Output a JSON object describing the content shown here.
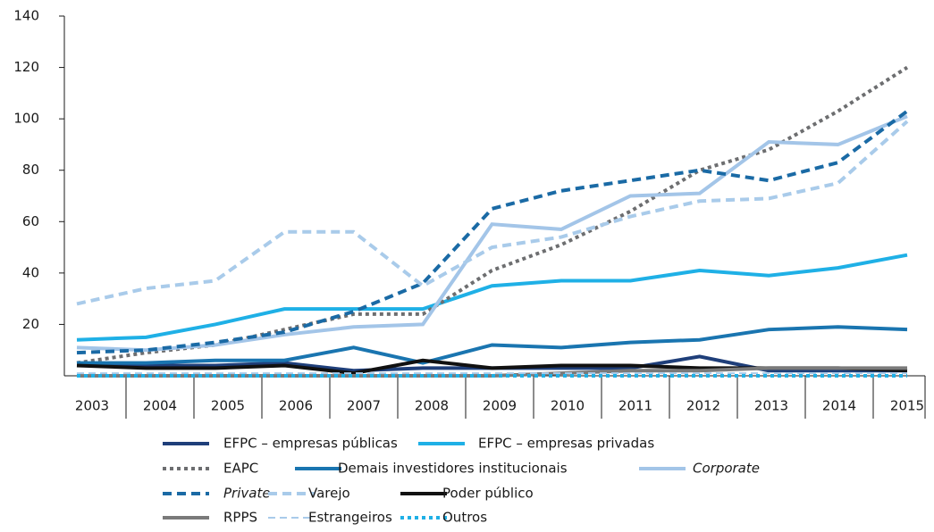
{
  "chart_data": {
    "type": "line",
    "categories": [
      "2003",
      "2004",
      "2005",
      "2006",
      "2007",
      "2008",
      "2009",
      "2010",
      "2011",
      "2012",
      "2013",
      "2014",
      "2015"
    ],
    "ylim": [
      0,
      140
    ],
    "yticks": [
      20,
      40,
      60,
      80,
      100,
      120,
      140
    ],
    "series": [
      {
        "name": "EFPC – empresas públicas",
        "color": "#1f3f7a",
        "style": "solid",
        "values": [
          4,
          4,
          4,
          5,
          2,
          3,
          3,
          3,
          3,
          7.5,
          2,
          2,
          2
        ]
      },
      {
        "name": "EFPC – empresas privadas",
        "color": "#1fb0e6",
        "style": "solid",
        "values": [
          14,
          15,
          20,
          26,
          26,
          26,
          35,
          37,
          37,
          41,
          39,
          42,
          47
        ]
      },
      {
        "name": "EAPC",
        "color": "#6d6e70",
        "style": "dotted",
        "values": [
          5,
          9,
          12,
          18,
          24,
          24,
          41,
          51,
          64,
          80,
          88,
          103,
          120
        ]
      },
      {
        "name": "Demais investidores institucionais",
        "color": "#1a75b0",
        "style": "solid",
        "values": [
          5,
          5,
          6,
          6,
          11,
          5,
          12,
          11,
          13,
          14,
          18,
          19,
          18
        ]
      },
      {
        "name": "Corporate",
        "color": "#a3c5e8",
        "style": "solid",
        "italic": true,
        "values": [
          11,
          10,
          12,
          16,
          19,
          20,
          59,
          57,
          70,
          71,
          91,
          90,
          101
        ]
      },
      {
        "name": "Private",
        "color": "#1a6aa5",
        "style": "dashed",
        "italic": true,
        "values": [
          9,
          10,
          13,
          17,
          25,
          36,
          65,
          72,
          76,
          80,
          76,
          83,
          103
        ]
      },
      {
        "name": "Varejo",
        "color": "#a9cbea",
        "style": "dashed",
        "values": [
          28,
          34,
          37,
          56,
          56,
          35,
          50,
          54,
          62,
          68,
          69,
          75,
          99
        ]
      },
      {
        "name": "Poder público",
        "color": "#111111",
        "style": "solid",
        "values": [
          4,
          3,
          3,
          4,
          1,
          6,
          3,
          4,
          4,
          3,
          3,
          3,
          2
        ]
      },
      {
        "name": "RPPS",
        "color": "#7a7a7a",
        "style": "solid",
        "values": [
          0,
          0,
          0,
          0,
          0,
          0,
          0,
          1,
          2,
          2,
          3,
          3,
          3
        ]
      },
      {
        "name": "Estrangeiros",
        "color": "#a9cbea",
        "style": "thin",
        "values": [
          1,
          1,
          1,
          1,
          1,
          1,
          1,
          1,
          1,
          1,
          1,
          1,
          1
        ]
      },
      {
        "name": "Outros",
        "color": "#1fb0e6",
        "style": "dotted",
        "values": [
          0,
          0,
          0,
          0,
          0,
          0,
          0,
          0,
          0,
          0,
          0,
          0,
          0
        ]
      }
    ]
  }
}
